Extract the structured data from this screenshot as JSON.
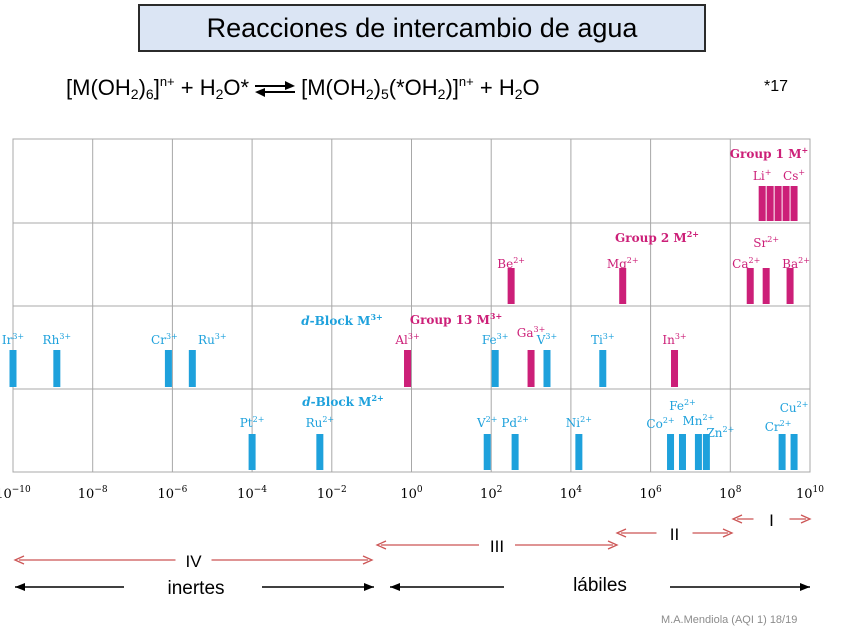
{
  "title": "Reacciones de intercambio de agua",
  "equation": {
    "lhs": {
      "open": "[M(OH",
      "sub1": "2",
      "close": ")",
      "sub2": "6",
      "charge_bracket": "]",
      "charge": "n+",
      "plus": " + H",
      "sub3": "2",
      "tail": "O*"
    },
    "rhs": {
      "open": "[M(OH",
      "sub1": "2",
      "close": ")",
      "sub2": "5",
      "mid": "(*OH",
      "sub3": "2",
      "close2": ")]",
      "charge": "n+",
      "plus": " + H",
      "sub4": "2",
      "tail": "O"
    }
  },
  "ref": "*17",
  "axis": {
    "ticks": [
      {
        "base": "10",
        "exp": "−10",
        "log": -10
      },
      {
        "base": "10",
        "exp": "−8",
        "log": -8
      },
      {
        "base": "10",
        "exp": "−6",
        "log": -6
      },
      {
        "base": "10",
        "exp": "−4",
        "log": -4
      },
      {
        "base": "10",
        "exp": "−2",
        "log": -2
      },
      {
        "base": "10",
        "exp": "0",
        "log": 0
      },
      {
        "base": "10",
        "exp": "2",
        "log": 2
      },
      {
        "base": "10",
        "exp": "4",
        "log": 4
      },
      {
        "base": "10",
        "exp": "6",
        "log": 6
      },
      {
        "base": "10",
        "exp": "8",
        "log": 8
      },
      {
        "base": "10",
        "exp": "10",
        "log": 10
      }
    ]
  },
  "groups": [
    {
      "label": "Group 1 M",
      "sup": "+",
      "color": "#cc1f78"
    },
    {
      "label": "Group 2 M",
      "sup": "2+",
      "color": "#cc1f78"
    },
    {
      "label": "Group 13 M",
      "sup": "3+",
      "color": "#cc1f78"
    },
    {
      "label": "d-Block M",
      "sup": "3+",
      "color": "#1ea1dc"
    },
    {
      "label": "d-Block M",
      "sup": "2+",
      "color": "#1ea1dc"
    }
  ],
  "ions": [
    {
      "sym": "Li",
      "charge": "+",
      "row": 0,
      "log": 8.8,
      "color": "#cc1f78"
    },
    {
      "sym": "Cs",
      "charge": "+",
      "row": 0,
      "log": 9.6,
      "color": "#cc1f78"
    },
    {
      "sym": "Be",
      "charge": "2+",
      "row": 1,
      "log": 2.5,
      "color": "#cc1f78"
    },
    {
      "sym": "Mg",
      "charge": "2+",
      "row": 1,
      "log": 5.3,
      "color": "#cc1f78"
    },
    {
      "sym": "Ca",
      "charge": "2+",
      "row": 1,
      "log": 8.5,
      "color": "#cc1f78"
    },
    {
      "sym": "Sr",
      "charge": "2+",
      "row": 1,
      "log": 8.9,
      "color": "#cc1f78"
    },
    {
      "sym": "Ba",
      "charge": "2+",
      "row": 1,
      "log": 9.5,
      "color": "#cc1f78"
    },
    {
      "sym": "Ir",
      "charge": "3+",
      "row": 2,
      "log": -10,
      "color": "#1ea1dc"
    },
    {
      "sym": "Rh",
      "charge": "3+",
      "row": 2,
      "log": -8.9,
      "color": "#1ea1dc"
    },
    {
      "sym": "Cr",
      "charge": "3+",
      "row": 2,
      "log": -6.1,
      "color": "#1ea1dc"
    },
    {
      "sym": "Ru",
      "charge": "3+",
      "row": 2,
      "log": -5.5,
      "color": "#1ea1dc"
    },
    {
      "sym": "Al",
      "charge": "3+",
      "row": 2,
      "log": -0.1,
      "color": "#cc1f78"
    },
    {
      "sym": "Fe",
      "charge": "3+",
      "row": 2,
      "log": 2.1,
      "color": "#1ea1dc"
    },
    {
      "sym": "Ga",
      "charge": "3+",
      "row": 2,
      "log": 3.0,
      "color": "#cc1f78"
    },
    {
      "sym": "V",
      "charge": "3+",
      "row": 2,
      "log": 3.4,
      "color": "#1ea1dc"
    },
    {
      "sym": "Ti",
      "charge": "3+",
      "row": 2,
      "log": 4.8,
      "color": "#1ea1dc"
    },
    {
      "sym": "In",
      "charge": "3+",
      "row": 2,
      "log": 6.6,
      "color": "#cc1f78"
    },
    {
      "sym": "Pt",
      "charge": "2+",
      "row": 3,
      "log": -4.0,
      "color": "#1ea1dc"
    },
    {
      "sym": "Ru",
      "charge": "2+",
      "row": 3,
      "log": -2.3,
      "color": "#1ea1dc"
    },
    {
      "sym": "V",
      "charge": "2+",
      "row": 3,
      "log": 1.9,
      "color": "#1ea1dc"
    },
    {
      "sym": "Pd",
      "charge": "2+",
      "row": 3,
      "log": 2.6,
      "color": "#1ea1dc"
    },
    {
      "sym": "Ni",
      "charge": "2+",
      "row": 3,
      "log": 4.2,
      "color": "#1ea1dc"
    },
    {
      "sym": "Co",
      "charge": "2+",
      "row": 3,
      "log": 6.5,
      "color": "#1ea1dc"
    },
    {
      "sym": "Fe",
      "charge": "2+",
      "row": 3,
      "log": 6.8,
      "color": "#1ea1dc"
    },
    {
      "sym": "Mn",
      "charge": "2+",
      "row": 3,
      "log": 7.2,
      "color": "#1ea1dc"
    },
    {
      "sym": "Zn",
      "charge": "2+",
      "row": 3,
      "log": 7.4,
      "color": "#1ea1dc"
    },
    {
      "sym": "Cr",
      "charge": "2+",
      "row": 3,
      "log": 9.3,
      "color": "#1ea1dc"
    },
    {
      "sym": "Cu",
      "charge": "2+",
      "row": 3,
      "log": 9.6,
      "color": "#1ea1dc"
    }
  ],
  "group1_extra_bars": [
    9.0,
    9.2,
    9.4
  ],
  "ranges": [
    {
      "label": "I",
      "from": 8.0,
      "to": 10.0
    },
    {
      "label": "II",
      "from": 5.0,
      "to": 8.0
    },
    {
      "label": "III",
      "from": -1.0,
      "to": 5.0
    },
    {
      "label": "IV",
      "from": -10.0,
      "to": -1.0
    }
  ],
  "classes": {
    "inert": "inertes",
    "labile": "lábiles"
  },
  "footer": "M.A.Mendiola (AQI 1) 18/19"
}
